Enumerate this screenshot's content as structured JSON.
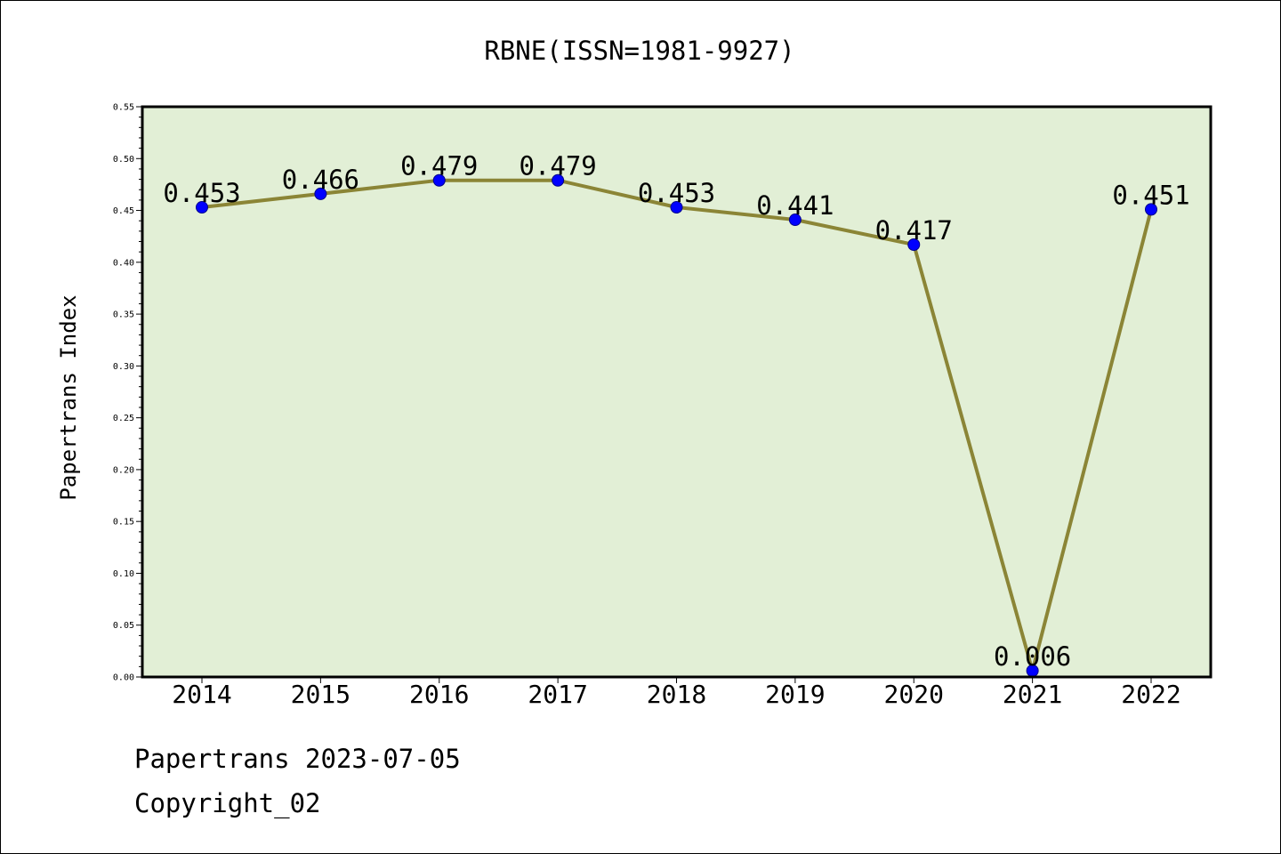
{
  "chart_data": {
    "type": "line",
    "title": "RBNE(ISSN=1981-9927)",
    "xlabel": "",
    "ylabel": "Papertrans Index",
    "categories": [
      "2014",
      "2015",
      "2016",
      "2017",
      "2018",
      "2019",
      "2020",
      "2021",
      "2022"
    ],
    "series": [
      {
        "values": [
          0.453,
          0.466,
          0.479,
          0.479,
          0.453,
          0.441,
          0.417,
          0.006,
          0.451
        ]
      }
    ],
    "data_labels": [
      "0.453",
      "0.466",
      "0.479",
      "0.479",
      "0.453",
      "0.441",
      "0.417",
      "0.006",
      "0.451"
    ],
    "ylim": [
      0,
      0.55
    ],
    "yticks": [
      "0.00",
      "0.05",
      "0.10",
      "0.15",
      "0.20",
      "0.25",
      "0.30",
      "0.35",
      "0.40",
      "0.45",
      "0.50",
      "0.55"
    ],
    "grid": false,
    "legend": "none",
    "colors": {
      "plot_background": "#e2efd6",
      "line": "#8b8536",
      "marker": "#0000ff",
      "marker_edge": "#00008b"
    }
  },
  "footer": {
    "line1": "Papertrans 2023-07-05",
    "line2": "Copyright_02"
  }
}
